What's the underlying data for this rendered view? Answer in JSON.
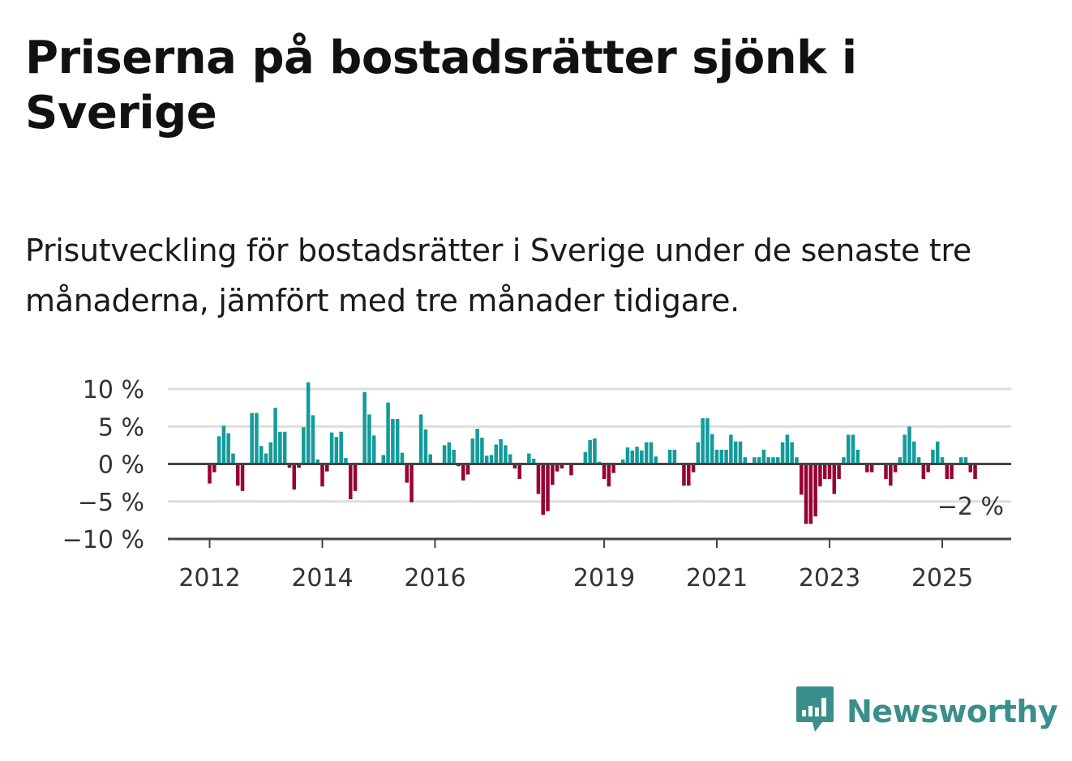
{
  "title": "Priserna på bostadsrätter sjönk i Sverige",
  "subtitle": "Prisutveckling för bostadsrätter i Sverige under de senaste tre månaderna, jämfört med tre månader tidigare.",
  "brand": {
    "name": "Newsworthy",
    "color": "#3a8f8c",
    "icon": "bar-chart-bubble-icon"
  },
  "colors": {
    "positive": "#139b9b",
    "negative": "#990033",
    "grid": "#dddddd",
    "zero_line": "#444444"
  },
  "chart_data": {
    "type": "bar",
    "start": "2012-01",
    "frequency": "monthly",
    "x_ticks": [
      "2012",
      "2014",
      "2016",
      "2019",
      "2021",
      "2023",
      "2025"
    ],
    "y_ticks": [
      "10 %",
      "5 %",
      "0 %",
      "−5 %",
      "−10 %"
    ],
    "ylim": [
      -10,
      10
    ],
    "grid": true,
    "end_label": "−2 %",
    "values": [
      -2.6,
      -1.1,
      3.7,
      5.1,
      4.1,
      1.4,
      -2.9,
      -3.6,
      0,
      6.8,
      6.8,
      2.4,
      1.4,
      2.9,
      7.5,
      4.3,
      4.3,
      -0.5,
      -3.4,
      -0.5,
      4.9,
      10.9,
      6.5,
      0.6,
      -3.0,
      -1.0,
      4.2,
      3.6,
      4.3,
      0.8,
      -4.7,
      -3.6,
      0,
      9.6,
      6.6,
      3.8,
      0,
      1.2,
      8.2,
      6.0,
      6.0,
      1.5,
      -2.5,
      -5.1,
      0,
      6.6,
      4.6,
      1.3,
      0,
      0,
      2.5,
      2.9,
      1.9,
      -0.3,
      -2.2,
      -1.4,
      3.4,
      4.7,
      3.5,
      1.1,
      1.2,
      2.6,
      3.3,
      2.5,
      1.3,
      -0.6,
      -2.0,
      0,
      1.4,
      0.7,
      -4.0,
      -6.8,
      -6.3,
      -2.8,
      -1.0,
      -0.6,
      0,
      -1.5,
      0,
      0,
      1.6,
      3.2,
      3.4,
      0.3,
      -2.0,
      -3.0,
      -1.2,
      0,
      0.6,
      2.2,
      1.8,
      2.3,
      1.8,
      2.9,
      2.9,
      1.0,
      0,
      0,
      1.9,
      1.9,
      0,
      -2.9,
      -2.9,
      -1.1,
      2.9,
      6.1,
      6.1,
      4.0,
      1.9,
      1.9,
      1.9,
      3.9,
      3.0,
      3.0,
      0.9,
      0,
      0.9,
      0.9,
      1.9,
      0.9,
      0.9,
      0.9,
      2.9,
      3.9,
      2.9,
      0.9,
      -4.1,
      -8.0,
      -8.0,
      -7.0,
      -3.0,
      -2.0,
      -2.0,
      -4.0,
      -2.0,
      0.9,
      3.9,
      3.9,
      1.9,
      0,
      -1.1,
      -1.1,
      0,
      0,
      -2.0,
      -2.9,
      -1.1,
      0.9,
      3.9,
      5.0,
      3.0,
      0.9,
      -2.0,
      -1.1,
      1.9,
      3.0,
      0.9,
      -2.0,
      -2.0,
      0,
      0.9,
      0.9,
      -1.1,
      -2.0
    ]
  }
}
